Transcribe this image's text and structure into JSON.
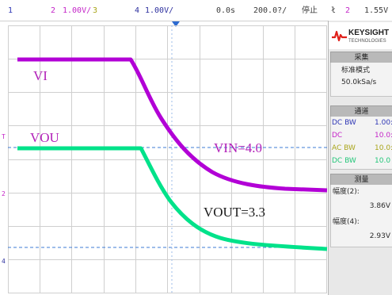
{
  "top_bar": {
    "ch1_num": "1",
    "ch2_num": "2",
    "ch2_scale": "1.00V/",
    "ch3_num": "3",
    "ch4_num": "4",
    "ch4_scale": "1.00V/",
    "time_delay": "0.0s",
    "time_scale": "200.0?/",
    "run_state": "停止",
    "trigger_symbol": "ł",
    "trigger_source": "2",
    "trigger_level": "1.55V"
  },
  "scope": {
    "annotations": {
      "vi": "VI",
      "vou": "VOU",
      "vin": "VIN=4.0",
      "vout": "VOUT=3.3"
    },
    "left_markers": {
      "ch_t": "T",
      "ch2": "2",
      "ch4": "4"
    }
  },
  "side_panel": {
    "brand": "KEYSIGHT",
    "brand_sub": "TECHNOLOGIES",
    "acquire": {
      "header": "采集",
      "mode": "标准模式",
      "rate": "50.0kSa/s"
    },
    "channels": {
      "header": "通道",
      "rows": [
        {
          "coupling": "DC BW",
          "value": "1.00:",
          "color": "#2f37b5"
        },
        {
          "coupling": "DC",
          "value": "10.0:",
          "color": "#c425c8"
        },
        {
          "coupling": "AC BW",
          "value": "10.0:",
          "color": "#a9a51a"
        },
        {
          "coupling": "DC BW",
          "value": "10.0",
          "color": "#23c679"
        }
      ]
    },
    "measure": {
      "header": "测量",
      "m1_label": "幅度(2):",
      "m1_value": "3.86V",
      "m2_label": "幅度(4):",
      "m2_value": "2.93V"
    }
  },
  "colors": {
    "ch2_trace": "#b200d6",
    "ch4_trace": "#00e28a",
    "dashed_ref": "#3c7bd5",
    "grid": "#cfcfcf"
  }
}
